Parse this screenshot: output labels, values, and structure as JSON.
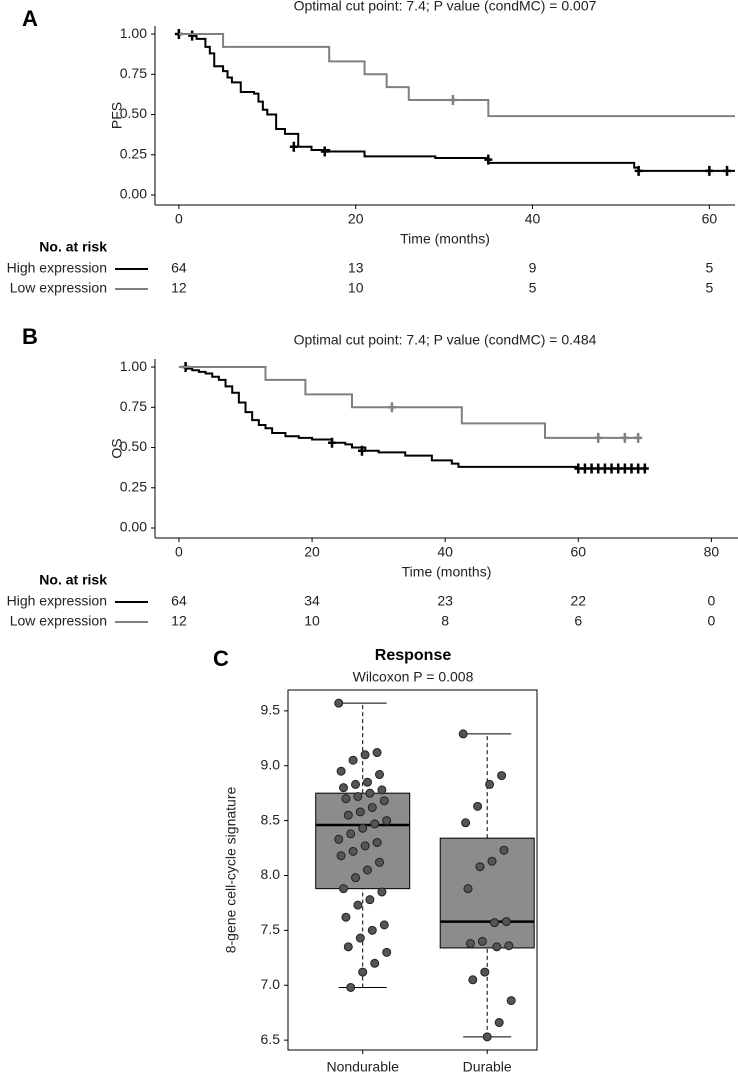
{
  "chart_data": [
    {
      "type": "step",
      "panel_label": "A",
      "subtitle": "Optimal cut point: 7.4; P value (condMC) = 0.007",
      "x_label": "Time (months)",
      "y_label": "PFS",
      "risk_title": "No. at risk",
      "xlim": [
        -2.7,
        62.9
      ],
      "xticks": [
        0,
        20,
        40,
        60
      ],
      "ylim": [
        -0.062,
        1.05
      ],
      "yticks": [
        {
          "value": 0,
          "label": "0.00"
        },
        {
          "value": 0.25,
          "label": "0.25"
        },
        {
          "value": 0.5,
          "label": "0.50"
        },
        {
          "value": 0.75,
          "label": "0.75"
        },
        {
          "value": 1,
          "label": "1.00"
        }
      ],
      "series": [
        {
          "name": "High expression",
          "color": "#000000",
          "at_risk": [
            64,
            13,
            9,
            5
          ],
          "x": [
            0,
            2,
            3,
            3.5,
            4,
            5,
            5.5,
            6,
            7,
            8.5,
            9,
            9.5,
            10,
            11,
            12,
            13.5,
            15,
            17,
            21,
            29,
            35,
            51.5,
            52,
            62.9
          ],
          "values": [
            1,
            0.97,
            0.92,
            0.88,
            0.8,
            0.77,
            0.73,
            0.7,
            0.64,
            0.63,
            0.58,
            0.53,
            0.5,
            0.41,
            0.38,
            0.3,
            0.28,
            0.27,
            0.24,
            0.23,
            0.2,
            0.17,
            0.15,
            0.15
          ],
          "censor_x": [
            0,
            1.5,
            13,
            16.5,
            35,
            52,
            60,
            62
          ],
          "censor_values": [
            1,
            0.99,
            0.3,
            0.27,
            0.22,
            0.15,
            0.15,
            0.15
          ]
        },
        {
          "name": "Low expression",
          "color": "#808080",
          "at_risk": [
            12,
            10,
            5,
            5
          ],
          "x": [
            0,
            5,
            17,
            21,
            23.5,
            26,
            35,
            62.9
          ],
          "values": [
            1,
            0.92,
            0.83,
            0.75,
            0.67,
            0.59,
            0.49,
            0.49
          ],
          "censor_x": [
            31
          ],
          "censor_values": [
            0.59
          ]
        }
      ]
    },
    {
      "type": "step",
      "panel_label": "B",
      "subtitle": "Optimal cut point: 7.4; P value (condMC) = 0.484",
      "x_label": "Time (months)",
      "y_label": "OS",
      "risk_title": "No. at risk",
      "xlim": [
        -3.6,
        84
      ],
      "xticks": [
        0,
        20,
        40,
        60,
        80
      ],
      "ylim": [
        -0.062,
        1.05
      ],
      "yticks": [
        {
          "value": 0,
          "label": "0.00"
        },
        {
          "value": 0.25,
          "label": "0.25"
        },
        {
          "value": 0.5,
          "label": "0.50"
        },
        {
          "value": 0.75,
          "label": "0.75"
        },
        {
          "value": 1,
          "label": "1.00"
        }
      ],
      "series": [
        {
          "name": "High expression",
          "color": "#000000",
          "at_risk": [
            64,
            34,
            23,
            22,
            0
          ],
          "x": [
            0,
            1,
            2,
            3,
            4,
            5,
            6,
            7,
            8,
            9,
            10,
            11,
            12,
            13,
            14,
            16,
            18,
            20,
            23,
            25,
            26,
            28,
            30,
            34,
            38,
            41,
            42,
            60,
            70.5
          ],
          "values": [
            1,
            0.99,
            0.98,
            0.97,
            0.96,
            0.94,
            0.92,
            0.88,
            0.84,
            0.78,
            0.72,
            0.67,
            0.64,
            0.62,
            0.59,
            0.57,
            0.56,
            0.55,
            0.53,
            0.52,
            0.5,
            0.48,
            0.47,
            0.45,
            0.42,
            0.4,
            0.38,
            0.37,
            0.37
          ],
          "censor_x": [
            1,
            23,
            27.5,
            60,
            61,
            62,
            63,
            64,
            65,
            66,
            67,
            68,
            69,
            70
          ],
          "censor_values": [
            1,
            0.53,
            0.48,
            0.37,
            0.37,
            0.37,
            0.37,
            0.37,
            0.37,
            0.37,
            0.37,
            0.37,
            0.37,
            0.37
          ]
        },
        {
          "name": "Low expression",
          "color": "#808080",
          "at_risk": [
            12,
            10,
            8,
            6,
            0
          ],
          "x": [
            0,
            13,
            19,
            26,
            42.5,
            55,
            69
          ],
          "values": [
            1,
            0.92,
            0.83,
            0.75,
            0.65,
            0.56,
            0.56
          ],
          "censor_x": [
            32,
            63,
            67,
            69
          ],
          "censor_values": [
            0.75,
            0.56,
            0.56,
            0.56
          ]
        }
      ]
    },
    {
      "type": "box",
      "panel_label": "C",
      "title": "Response",
      "subtitle": "Wilcoxon P = 0.008",
      "y_label": "8-gene cell-cycle signature",
      "categories": [
        "Nondurable",
        "Durable"
      ],
      "ylim": [
        6.41,
        9.69
      ],
      "yticks": [
        6.5,
        {
          "value": 7,
          "label": "7.0"
        },
        7.5,
        {
          "value": 8,
          "label": "8.0"
        },
        8.5,
        {
          "value": 9,
          "label": "9.0"
        },
        9.5
      ],
      "box_color": "#8c8c8c",
      "point_color": "#555555",
      "boxes": [
        {
          "whisker_low": 6.98,
          "q1": 7.88,
          "median": 8.46,
          "q3": 8.75,
          "whisker_high": 9.57,
          "points": [
            9.57,
            9.12,
            9.1,
            9.05,
            8.95,
            8.92,
            8.85,
            8.83,
            8.8,
            8.78,
            8.75,
            8.72,
            8.7,
            8.68,
            8.62,
            8.58,
            8.55,
            8.5,
            8.47,
            8.43,
            8.38,
            8.33,
            8.3,
            8.27,
            8.22,
            8.18,
            8.12,
            8.05,
            7.98,
            7.88,
            7.85,
            7.78,
            7.73,
            7.62,
            7.55,
            7.5,
            7.43,
            7.35,
            7.3,
            7.2,
            7.12,
            6.98
          ]
        },
        {
          "whisker_low": 6.53,
          "q1": 7.34,
          "median": 7.58,
          "q3": 8.34,
          "whisker_high": 9.29,
          "points": [
            9.29,
            8.91,
            8.83,
            8.63,
            8.48,
            8.23,
            8.13,
            8.08,
            7.88,
            7.58,
            7.57,
            7.4,
            7.38,
            7.36,
            7.35,
            7.12,
            7.05,
            6.86,
            6.66,
            6.53
          ]
        }
      ]
    }
  ]
}
